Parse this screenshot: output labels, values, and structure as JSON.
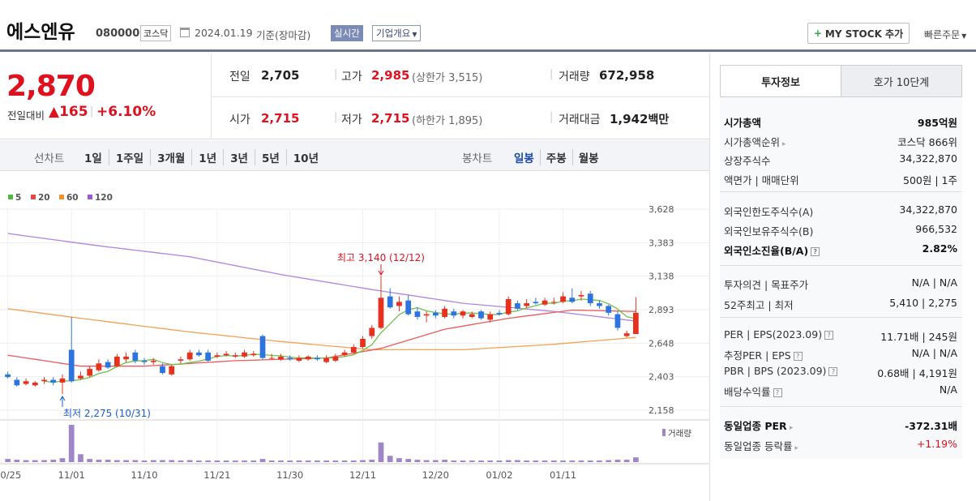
{
  "header": {
    "company_name": "에스엔유",
    "code": "080000",
    "market": "코스닥",
    "date": "2024.01.19",
    "basis": "기준(장마감)",
    "realtime": "실시간",
    "overview": "기업개요",
    "my_stock": "MY STOCK 추가",
    "quick_order": "빠른주문"
  },
  "quote": {
    "price": "2,870",
    "change_label": "전일대비",
    "change": "165",
    "change_pct": "+6.10%",
    "prev_label": "전일",
    "prev": "2,705",
    "high_label": "고가",
    "high": "2,985",
    "upper_limit": "(상한가 3,515)",
    "volume_label": "거래량",
    "volume": "672,958",
    "open_label": "시가",
    "open": "2,715",
    "low_label": "저가",
    "low": "2,715",
    "lower_limit": "(하한가 1,895)",
    "amount_label": "거래대금",
    "amount": "1,942",
    "amount_unit": "백만"
  },
  "periods": {
    "line_label": "선차트",
    "line_items": [
      "1일",
      "1주일",
      "3개월",
      "1년",
      "3년",
      "5년",
      "10년"
    ],
    "candle_label": "봉차트",
    "candle_items": [
      "일봉",
      "주봉",
      "월봉"
    ],
    "active_candle": "일봉"
  },
  "legend": [
    {
      "label": "5",
      "color": "#4fb83e"
    },
    {
      "label": "20",
      "color": "#e24848"
    },
    {
      "label": "60",
      "color": "#f08f2b"
    },
    {
      "label": "120",
      "color": "#9b5ad2"
    }
  ],
  "chart_data": {
    "type": "candlestick",
    "y_ticks": [
      "3,628",
      "3,383",
      "3,138",
      "2,893",
      "2,648",
      "2,403",
      "2,158"
    ],
    "ylim": [
      2158,
      3628
    ],
    "x_ticks": [
      "10/25",
      "11/01",
      "11/10",
      "11/21",
      "11/30",
      "12/11",
      "12/20",
      "01/02",
      "01/11"
    ],
    "high_annotation": "최고 3,140 (12/12)",
    "low_annotation": "최저 2,275 (10/31)",
    "volume_label": "거래량",
    "candles": [
      {
        "o": 2420,
        "c": 2400,
        "h": 2440,
        "l": 2390
      },
      {
        "o": 2380,
        "c": 2340,
        "h": 2400,
        "l": 2330
      },
      {
        "o": 2350,
        "c": 2370,
        "h": 2390,
        "l": 2340
      },
      {
        "o": 2340,
        "c": 2360,
        "h": 2370,
        "l": 2330
      },
      {
        "o": 2370,
        "c": 2380,
        "h": 2400,
        "l": 2350
      },
      {
        "o": 2380,
        "c": 2360,
        "h": 2400,
        "l": 2340
      },
      {
        "o": 2360,
        "c": 2390,
        "h": 2420,
        "l": 2275
      },
      {
        "o": 2600,
        "c": 2370,
        "h": 2840,
        "l": 2360
      },
      {
        "o": 2390,
        "c": 2410,
        "h": 2440,
        "l": 2380
      },
      {
        "o": 2410,
        "c": 2460,
        "h": 2480,
        "l": 2400
      },
      {
        "o": 2450,
        "c": 2500,
        "h": 2530,
        "l": 2440
      },
      {
        "o": 2510,
        "c": 2470,
        "h": 2530,
        "l": 2460
      },
      {
        "o": 2480,
        "c": 2550,
        "h": 2570,
        "l": 2470
      },
      {
        "o": 2530,
        "c": 2550,
        "h": 2580,
        "l": 2510
      },
      {
        "o": 2580,
        "c": 2520,
        "h": 2600,
        "l": 2500
      },
      {
        "o": 2520,
        "c": 2510,
        "h": 2540,
        "l": 2490
      },
      {
        "o": 2510,
        "c": 2520,
        "h": 2540,
        "l": 2490
      },
      {
        "o": 2480,
        "c": 2430,
        "h": 2500,
        "l": 2420
      },
      {
        "o": 2420,
        "c": 2480,
        "h": 2490,
        "l": 2410
      },
      {
        "o": 2520,
        "c": 2530,
        "h": 2550,
        "l": 2500
      },
      {
        "o": 2530,
        "c": 2580,
        "h": 2600,
        "l": 2520
      },
      {
        "o": 2580,
        "c": 2560,
        "h": 2600,
        "l": 2550
      },
      {
        "o": 2580,
        "c": 2520,
        "h": 2600,
        "l": 2510
      },
      {
        "o": 2550,
        "c": 2560,
        "h": 2580,
        "l": 2540
      },
      {
        "o": 2560,
        "c": 2570,
        "h": 2590,
        "l": 2550
      },
      {
        "o": 2550,
        "c": 2560,
        "h": 2580,
        "l": 2540
      },
      {
        "o": 2550,
        "c": 2580,
        "h": 2600,
        "l": 2540
      },
      {
        "o": 2560,
        "c": 2570,
        "h": 2590,
        "l": 2550
      },
      {
        "o": 2700,
        "c": 2540,
        "h": 2710,
        "l": 2530
      },
      {
        "o": 2540,
        "c": 2540,
        "h": 2570,
        "l": 2530
      },
      {
        "o": 2530,
        "c": 2550,
        "h": 2570,
        "l": 2520
      },
      {
        "o": 2540,
        "c": 2530,
        "h": 2560,
        "l": 2520
      },
      {
        "o": 2520,
        "c": 2540,
        "h": 2560,
        "l": 2510
      },
      {
        "o": 2530,
        "c": 2550,
        "h": 2560,
        "l": 2520
      },
      {
        "o": 2540,
        "c": 2530,
        "h": 2560,
        "l": 2520
      },
      {
        "o": 2510,
        "c": 2540,
        "h": 2560,
        "l": 2500
      },
      {
        "o": 2520,
        "c": 2550,
        "h": 2570,
        "l": 2510
      },
      {
        "o": 2560,
        "c": 2580,
        "h": 2600,
        "l": 2550
      },
      {
        "o": 2580,
        "c": 2620,
        "h": 2640,
        "l": 2570
      },
      {
        "o": 2620,
        "c": 2680,
        "h": 2700,
        "l": 2610
      },
      {
        "o": 2700,
        "c": 2760,
        "h": 2780,
        "l": 2680
      },
      {
        "o": 2760,
        "c": 2980,
        "h": 3140,
        "l": 2750
      },
      {
        "o": 2990,
        "c": 2910,
        "h": 3050,
        "l": 2900
      },
      {
        "o": 2920,
        "c": 2950,
        "h": 2990,
        "l": 2880
      },
      {
        "o": 2960,
        "c": 2860,
        "h": 3000,
        "l": 2850
      },
      {
        "o": 2880,
        "c": 2840,
        "h": 2910,
        "l": 2820
      },
      {
        "o": 2850,
        "c": 2860,
        "h": 2880,
        "l": 2800
      },
      {
        "o": 2870,
        "c": 2850,
        "h": 2890,
        "l": 2830
      },
      {
        "o": 2840,
        "c": 2900,
        "h": 2920,
        "l": 2830
      },
      {
        "o": 2880,
        "c": 2850,
        "h": 2900,
        "l": 2830
      },
      {
        "o": 2850,
        "c": 2880,
        "h": 2890,
        "l": 2830
      },
      {
        "o": 2840,
        "c": 2860,
        "h": 2880,
        "l": 2830
      },
      {
        "o": 2880,
        "c": 2830,
        "h": 2890,
        "l": 2820
      },
      {
        "o": 2820,
        "c": 2860,
        "h": 2880,
        "l": 2800
      },
      {
        "o": 2870,
        "c": 2860,
        "h": 2890,
        "l": 2850
      },
      {
        "o": 2860,
        "c": 2970,
        "h": 2990,
        "l": 2850
      },
      {
        "o": 2940,
        "c": 2900,
        "h": 2960,
        "l": 2890
      },
      {
        "o": 2920,
        "c": 2940,
        "h": 2970,
        "l": 2910
      },
      {
        "o": 2950,
        "c": 2940,
        "h": 2980,
        "l": 2930
      },
      {
        "o": 2930,
        "c": 2960,
        "h": 2980,
        "l": 2920
      },
      {
        "o": 2950,
        "c": 2950,
        "h": 2980,
        "l": 2930
      },
      {
        "o": 2950,
        "c": 2990,
        "h": 3020,
        "l": 2940
      },
      {
        "o": 2980,
        "c": 2950,
        "h": 3050,
        "l": 2940
      },
      {
        "o": 2990,
        "c": 3000,
        "h": 3030,
        "l": 2960
      },
      {
        "o": 3010,
        "c": 2940,
        "h": 3030,
        "l": 2920
      },
      {
        "o": 2940,
        "c": 2920,
        "h": 2960,
        "l": 2900
      },
      {
        "o": 2920,
        "c": 2870,
        "h": 2930,
        "l": 2850
      },
      {
        "o": 2860,
        "c": 2760,
        "h": 2880,
        "l": 2740
      },
      {
        "o": 2700,
        "c": 2720,
        "h": 2740,
        "l": 2690
      },
      {
        "o": 2715,
        "c": 2870,
        "h": 2985,
        "l": 2715
      }
    ],
    "volumes": [
      8,
      6,
      5,
      5,
      5,
      6,
      10,
      95,
      20,
      8,
      6,
      6,
      5,
      5,
      5,
      4,
      5,
      5,
      5,
      4,
      5,
      4,
      4,
      4,
      4,
      4,
      4,
      4,
      8,
      4,
      4,
      4,
      4,
      4,
      4,
      4,
      4,
      4,
      4,
      5,
      6,
      50,
      16,
      10,
      8,
      6,
      5,
      5,
      6,
      4,
      4,
      4,
      4,
      4,
      4,
      5,
      5,
      4,
      4,
      4,
      4,
      4,
      4,
      4,
      4,
      4,
      5,
      6,
      6,
      12
    ]
  },
  "side_panel": {
    "tabs": [
      "투자정보",
      "호가 10단계"
    ],
    "rows1": [
      {
        "k": "시가총액",
        "v": "985억원",
        "bold": true
      },
      {
        "k": "시가총액순위",
        "v": "코스닥 866위",
        "arrow": true
      },
      {
        "k": "상장주식수",
        "v": "34,322,870"
      },
      {
        "k": "액면가 | 매매단위",
        "v": "500원 | 1주"
      }
    ],
    "rows2": [
      {
        "k": "외국인한도주식수(A)",
        "v": "34,322,870"
      },
      {
        "k": "외국인보유주식수(B)",
        "v": "966,532"
      },
      {
        "k": "외국인소진율(B/A)",
        "v": "2.82%",
        "bold": true,
        "q": true
      }
    ],
    "rows3": [
      {
        "k": "투자의견 | 목표주가",
        "v": "N/A | N/A"
      },
      {
        "k": "52주최고 | 최저",
        "v": "5,410 | 2,275"
      }
    ],
    "rows4": [
      {
        "k": "PER | EPS(2023.09)",
        "v": "11.71배 | 245원",
        "q": true
      },
      {
        "k": "추정PER | EPS",
        "v": "N/A | N/A",
        "q": true
      },
      {
        "k": "PBR | BPS (2023.09)",
        "v": "0.68배 | 4,191원",
        "q": true
      },
      {
        "k": "배당수익률",
        "v": "N/A",
        "q": true
      }
    ],
    "rows5": [
      {
        "k": "동일업종 PER",
        "v": "-372.31배",
        "bold": true,
        "arrow": true
      },
      {
        "k": "동일업종 등락률",
        "v": "+1.19%",
        "red": true,
        "arrow": true
      }
    ]
  }
}
